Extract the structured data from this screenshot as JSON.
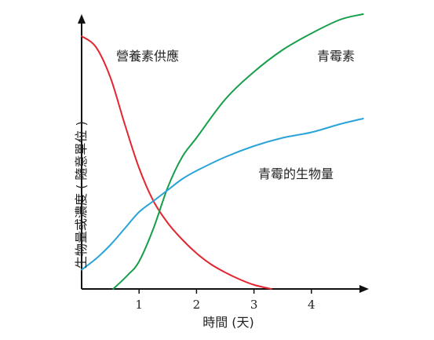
{
  "chart_data": {
    "type": "line",
    "xlabel": "時間 (天)",
    "ylabel": "生物量或濃度 ( 隨意單位 )",
    "x_ticks": [
      1,
      2,
      3,
      4
    ],
    "xlim": [
      0,
      5
    ],
    "ylim": [
      0,
      1
    ],
    "grid": false,
    "series": [
      {
        "name": "營養素供應",
        "color": "#e32630",
        "points": [
          [
            0,
            0.92
          ],
          [
            0.25,
            0.88
          ],
          [
            0.5,
            0.77
          ],
          [
            0.75,
            0.6
          ],
          [
            1,
            0.44
          ],
          [
            1.25,
            0.32
          ],
          [
            1.5,
            0.24
          ],
          [
            1.75,
            0.18
          ],
          [
            2,
            0.13
          ],
          [
            2.25,
            0.09
          ],
          [
            2.5,
            0.06
          ],
          [
            2.75,
            0.035
          ],
          [
            3,
            0.015
          ],
          [
            3.3,
            0.0
          ]
        ]
      },
      {
        "name": "青霉素",
        "color": "#169e4a",
        "points": [
          [
            0.55,
            0.0
          ],
          [
            0.8,
            0.05
          ],
          [
            1.0,
            0.1
          ],
          [
            1.25,
            0.22
          ],
          [
            1.5,
            0.37
          ],
          [
            1.75,
            0.48
          ],
          [
            2.0,
            0.55
          ],
          [
            2.5,
            0.69
          ],
          [
            3.0,
            0.79
          ],
          [
            3.5,
            0.87
          ],
          [
            4.0,
            0.93
          ],
          [
            4.5,
            0.98
          ],
          [
            4.9,
            1.0
          ]
        ]
      },
      {
        "name": "青霉的生物量",
        "color": "#2aa3d8",
        "points": [
          [
            0,
            0.07
          ],
          [
            0.25,
            0.11
          ],
          [
            0.5,
            0.16
          ],
          [
            0.75,
            0.22
          ],
          [
            1.0,
            0.28
          ],
          [
            1.25,
            0.32
          ],
          [
            1.5,
            0.36
          ],
          [
            1.75,
            0.4
          ],
          [
            2.0,
            0.43
          ],
          [
            2.5,
            0.48
          ],
          [
            3.0,
            0.52
          ],
          [
            3.5,
            0.55
          ],
          [
            4.0,
            0.57
          ],
          [
            4.5,
            0.6
          ],
          [
            4.9,
            0.62
          ]
        ]
      }
    ]
  }
}
